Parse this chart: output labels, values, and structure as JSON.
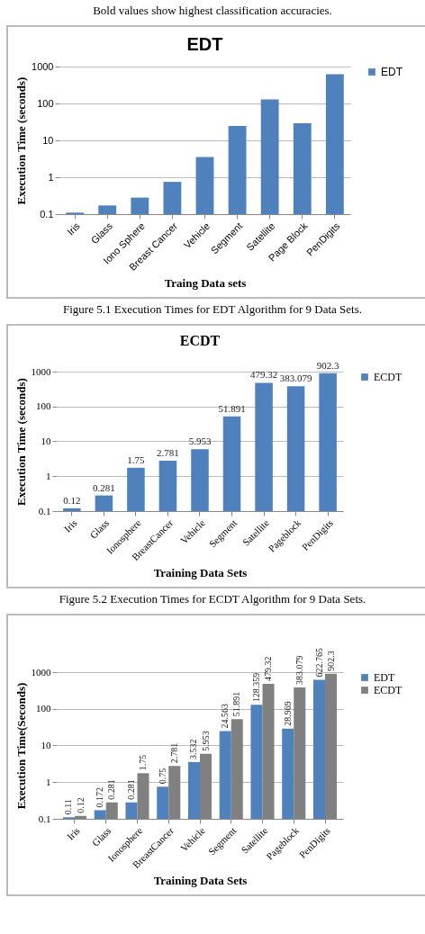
{
  "chart_data": [
    {
      "type": "bar",
      "title": "EDT",
      "xlabel": "Traing Data sets",
      "ylabel": "Execution Time (seconds)",
      "categories": [
        "Iris",
        "Glass",
        "Iono Sphere",
        "Breast Cancer",
        "Vehicle",
        "Segment",
        "Satellite",
        "Page Block",
        "PenDigits"
      ],
      "series": [
        {
          "name": "EDT",
          "color": "#4f81bd",
          "values": [
            0.11,
            0.172,
            0.281,
            0.75,
            3.532,
            24.563,
            128.359,
            28.969,
            622.765
          ]
        }
      ],
      "log": "y",
      "ylim": [
        0.1,
        1000
      ],
      "yticks": [
        0.1,
        1,
        10,
        100,
        1000
      ],
      "grid": "y",
      "legend": "right",
      "annotations": [
        "Bold values show highest classification accuracies.",
        "Figure 5.1 Execution Times for EDT Algorithm for 9 Data Sets."
      ]
    },
    {
      "type": "bar",
      "title": "ECDT",
      "xlabel": "Training Data Sets",
      "ylabel": "Execution Time (seconds)",
      "categories": [
        "Iris",
        "Glass",
        "Ionosphere",
        "BreastCancer",
        "Vehicle",
        "Segment",
        "Satellite",
        "Pageblock",
        "PenDigits"
      ],
      "series": [
        {
          "name": "ECDT",
          "color": "#4f81bd",
          "values": [
            0.12,
            0.281,
            1.75,
            2.781,
            5.953,
            51.891,
            479.32,
            383.079,
            902.3
          ]
        }
      ],
      "log": "y",
      "ylim": [
        0.1,
        1000
      ],
      "yticks": [
        0.1,
        1,
        10,
        100,
        1000
      ],
      "grid": "y",
      "legend": "right",
      "data_labels": true,
      "annotations": [
        "Figure 5.2 Execution Times for ECDT Algorithm for 9 Data Sets."
      ]
    },
    {
      "type": "bar",
      "xlabel": "Training Data Sets",
      "ylabel": "Execution Time(Seconds)",
      "categories": [
        "Iris",
        "Glass",
        "Ionosphere",
        "BreastCancer",
        "Vehicle",
        "Segment",
        "Satellite",
        "Pageblock",
        "PenDigits"
      ],
      "series": [
        {
          "name": "EDT",
          "color": "#4f81bd",
          "values": [
            0.11,
            0.172,
            0.281,
            0.75,
            3.532,
            24.563,
            128.359,
            28.969,
            622.765
          ]
        },
        {
          "name": "ECDT",
          "color": "#808080",
          "values": [
            0.12,
            0.281,
            1.75,
            2.781,
            5.953,
            51.891,
            479.32,
            383.079,
            902.3
          ]
        }
      ],
      "log": "y",
      "ylim": [
        0.1,
        1000
      ],
      "yticks": [
        0.1,
        1,
        10,
        100,
        1000
      ],
      "grid": "y",
      "legend": "right",
      "data_labels": true
    }
  ]
}
